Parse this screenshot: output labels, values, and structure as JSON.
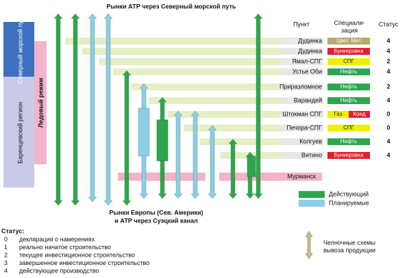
{
  "title": "Рынки АТР через Северный морской путь",
  "side": {
    "nsr": "Северный морской путь",
    "barents": "Баренцевский регион",
    "ice": "Ледовый режим"
  },
  "headers": {
    "point": "Пункт",
    "spec": [
      "Специали-",
      "зация"
    ],
    "status": "Статус"
  },
  "rows": [
    {
      "point": "Дудинка",
      "spec": [
        "Цвет. Мет"
      ],
      "colors": [
        "#b9a96c"
      ],
      "status": 4
    },
    {
      "point": "Дудинка",
      "spec": [
        "Бункеровка"
      ],
      "colors": [
        "#e0202e"
      ],
      "status": 4
    },
    {
      "point": "Ямал-СПГ",
      "spec": [
        "СПГ"
      ],
      "colors": [
        "#eef000"
      ],
      "status": 2
    },
    {
      "point": "Устье Оби",
      "spec": [
        "Нефть"
      ],
      "colors": [
        "#2ea64e"
      ],
      "status": 4
    },
    {
      "point": "Приразломное",
      "spec": [
        "Нефть"
      ],
      "colors": [
        "#2ea64e"
      ],
      "status": 2
    },
    {
      "point": "Варандей",
      "spec": [
        "Нефть"
      ],
      "colors": [
        "#2ea64e"
      ],
      "status": 4
    },
    {
      "point": "Штокман СПГ",
      "spec": [
        "Газ",
        "Конд"
      ],
      "colors": [
        "#eef000",
        "#e0202e"
      ],
      "status": 0
    },
    {
      "point": "Печора-СПГ",
      "spec": [
        "СПГ"
      ],
      "colors": [
        "#eef000"
      ],
      "status": 0
    },
    {
      "point": "Колгуев",
      "spec": [
        "Нефть"
      ],
      "colors": [
        "#2ea64e"
      ],
      "status": 4
    },
    {
      "point": "Витино",
      "spec": [
        "Бункеровка"
      ],
      "colors": [
        "#e0202e"
      ],
      "status": 4
    }
  ],
  "murmansk": "Мурманск",
  "bottom": [
    "Рынки Европы (Сев. Америки)",
    "и АТР через Суэцкий канал"
  ],
  "legend": [
    {
      "name": "Действующий",
      "color": "#2ea64e"
    },
    {
      "name": "Планируемые",
      "color": "#8ccde8"
    }
  ],
  "status_title": "Статус:",
  "status_list": [
    {
      "code": "0",
      "text": "декларация о намерениях"
    },
    {
      "code": "1",
      "text": "реально начатое строительство"
    },
    {
      "code": "2",
      "text": "текущее инвестиционное строительство"
    },
    {
      "code": "3",
      "text": "завершенное инвестиционное строительство"
    },
    {
      "code": "4",
      "text": "действующее производство"
    }
  ],
  "shuttle": [
    "Челночные схемы",
    "вывоза продукции"
  ]
}
